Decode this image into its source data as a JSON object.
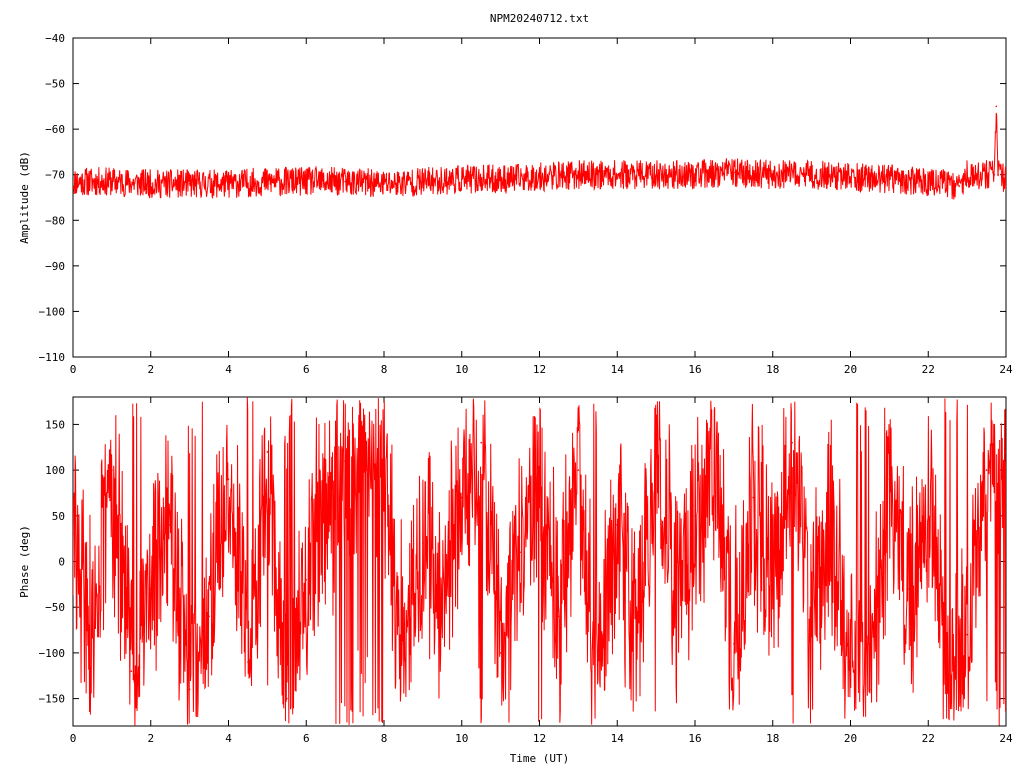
{
  "chart_data": [
    {
      "type": "line",
      "title": "NPM20240712.txt",
      "xlabel": "",
      "ylabel": "Amplitude (dB)",
      "xlim": [
        0,
        24
      ],
      "ylim": [
        -110,
        -40
      ],
      "x_ticks": [
        "0",
        "2",
        "4",
        "6",
        "8",
        "10",
        "12",
        "14",
        "16",
        "18",
        "20",
        "22",
        "24"
      ],
      "y_ticks": [
        "-40",
        "-50",
        "-60",
        "-70",
        "-80",
        "-90",
        "-100",
        "-110"
      ],
      "grid": false,
      "color": "#ff0000",
      "series": [
        {
          "x": [
            0,
            1,
            2,
            3,
            4,
            5,
            6,
            7,
            8,
            9,
            10,
            11,
            12,
            13,
            14,
            15,
            16,
            17,
            18,
            19,
            20,
            21,
            22,
            22.8,
            23,
            23.5,
            23.7,
            23.75,
            23.8,
            24
          ],
          "values": [
            -71.5,
            -71.5,
            -72,
            -72,
            -72,
            -71.5,
            -71.5,
            -71.5,
            -72,
            -71.5,
            -71,
            -71,
            -70.5,
            -70,
            -70,
            -70,
            -70,
            -69.5,
            -70,
            -70,
            -70.5,
            -71,
            -71.5,
            -72.5,
            -70,
            -70,
            -70,
            -55,
            -70,
            -71
          ]
        }
      ]
    },
    {
      "type": "line",
      "title": "",
      "xlabel": "Time (UT)",
      "ylabel": "Phase (deg)",
      "xlim": [
        0,
        24
      ],
      "ylim": [
        -180,
        180
      ],
      "x_ticks": [
        "0",
        "2",
        "4",
        "6",
        "8",
        "10",
        "12",
        "14",
        "16",
        "18",
        "20",
        "22",
        "24"
      ],
      "y_ticks": [
        "150",
        "100",
        "50",
        "0",
        "-50",
        "-100",
        "-150"
      ],
      "grid": false,
      "color": "#ff0000",
      "series": [
        {
          "x": [
            0,
            0.5,
            1,
            1.5,
            2,
            2.5,
            3,
            3.5,
            4,
            4.5,
            5,
            5.5,
            6,
            6.5,
            7,
            7.5,
            8,
            8.5,
            9,
            9.5,
            10,
            10.5,
            11,
            11.5,
            12,
            12.5,
            13,
            13.5,
            14,
            14.5,
            15,
            15.5,
            16,
            16.5,
            17,
            17.5,
            18,
            18.5,
            19,
            19.5,
            20,
            20.5,
            21,
            21.5,
            22,
            22.5,
            23,
            23.5,
            24
          ],
          "values": [
            30,
            -80,
            100,
            -120,
            -30,
            40,
            -140,
            -60,
            90,
            -110,
            120,
            -150,
            -20,
            60,
            110,
            150,
            80,
            -90,
            20,
            -40,
            70,
            130,
            -100,
            10,
            80,
            -60,
            100,
            -120,
            40,
            -80,
            120,
            -30,
            50,
            110,
            -90,
            70,
            -20,
            130,
            -60,
            40,
            -100,
            -140,
            90,
            -30,
            60,
            -120,
            -80,
            100,
            120
          ]
        }
      ]
    }
  ]
}
